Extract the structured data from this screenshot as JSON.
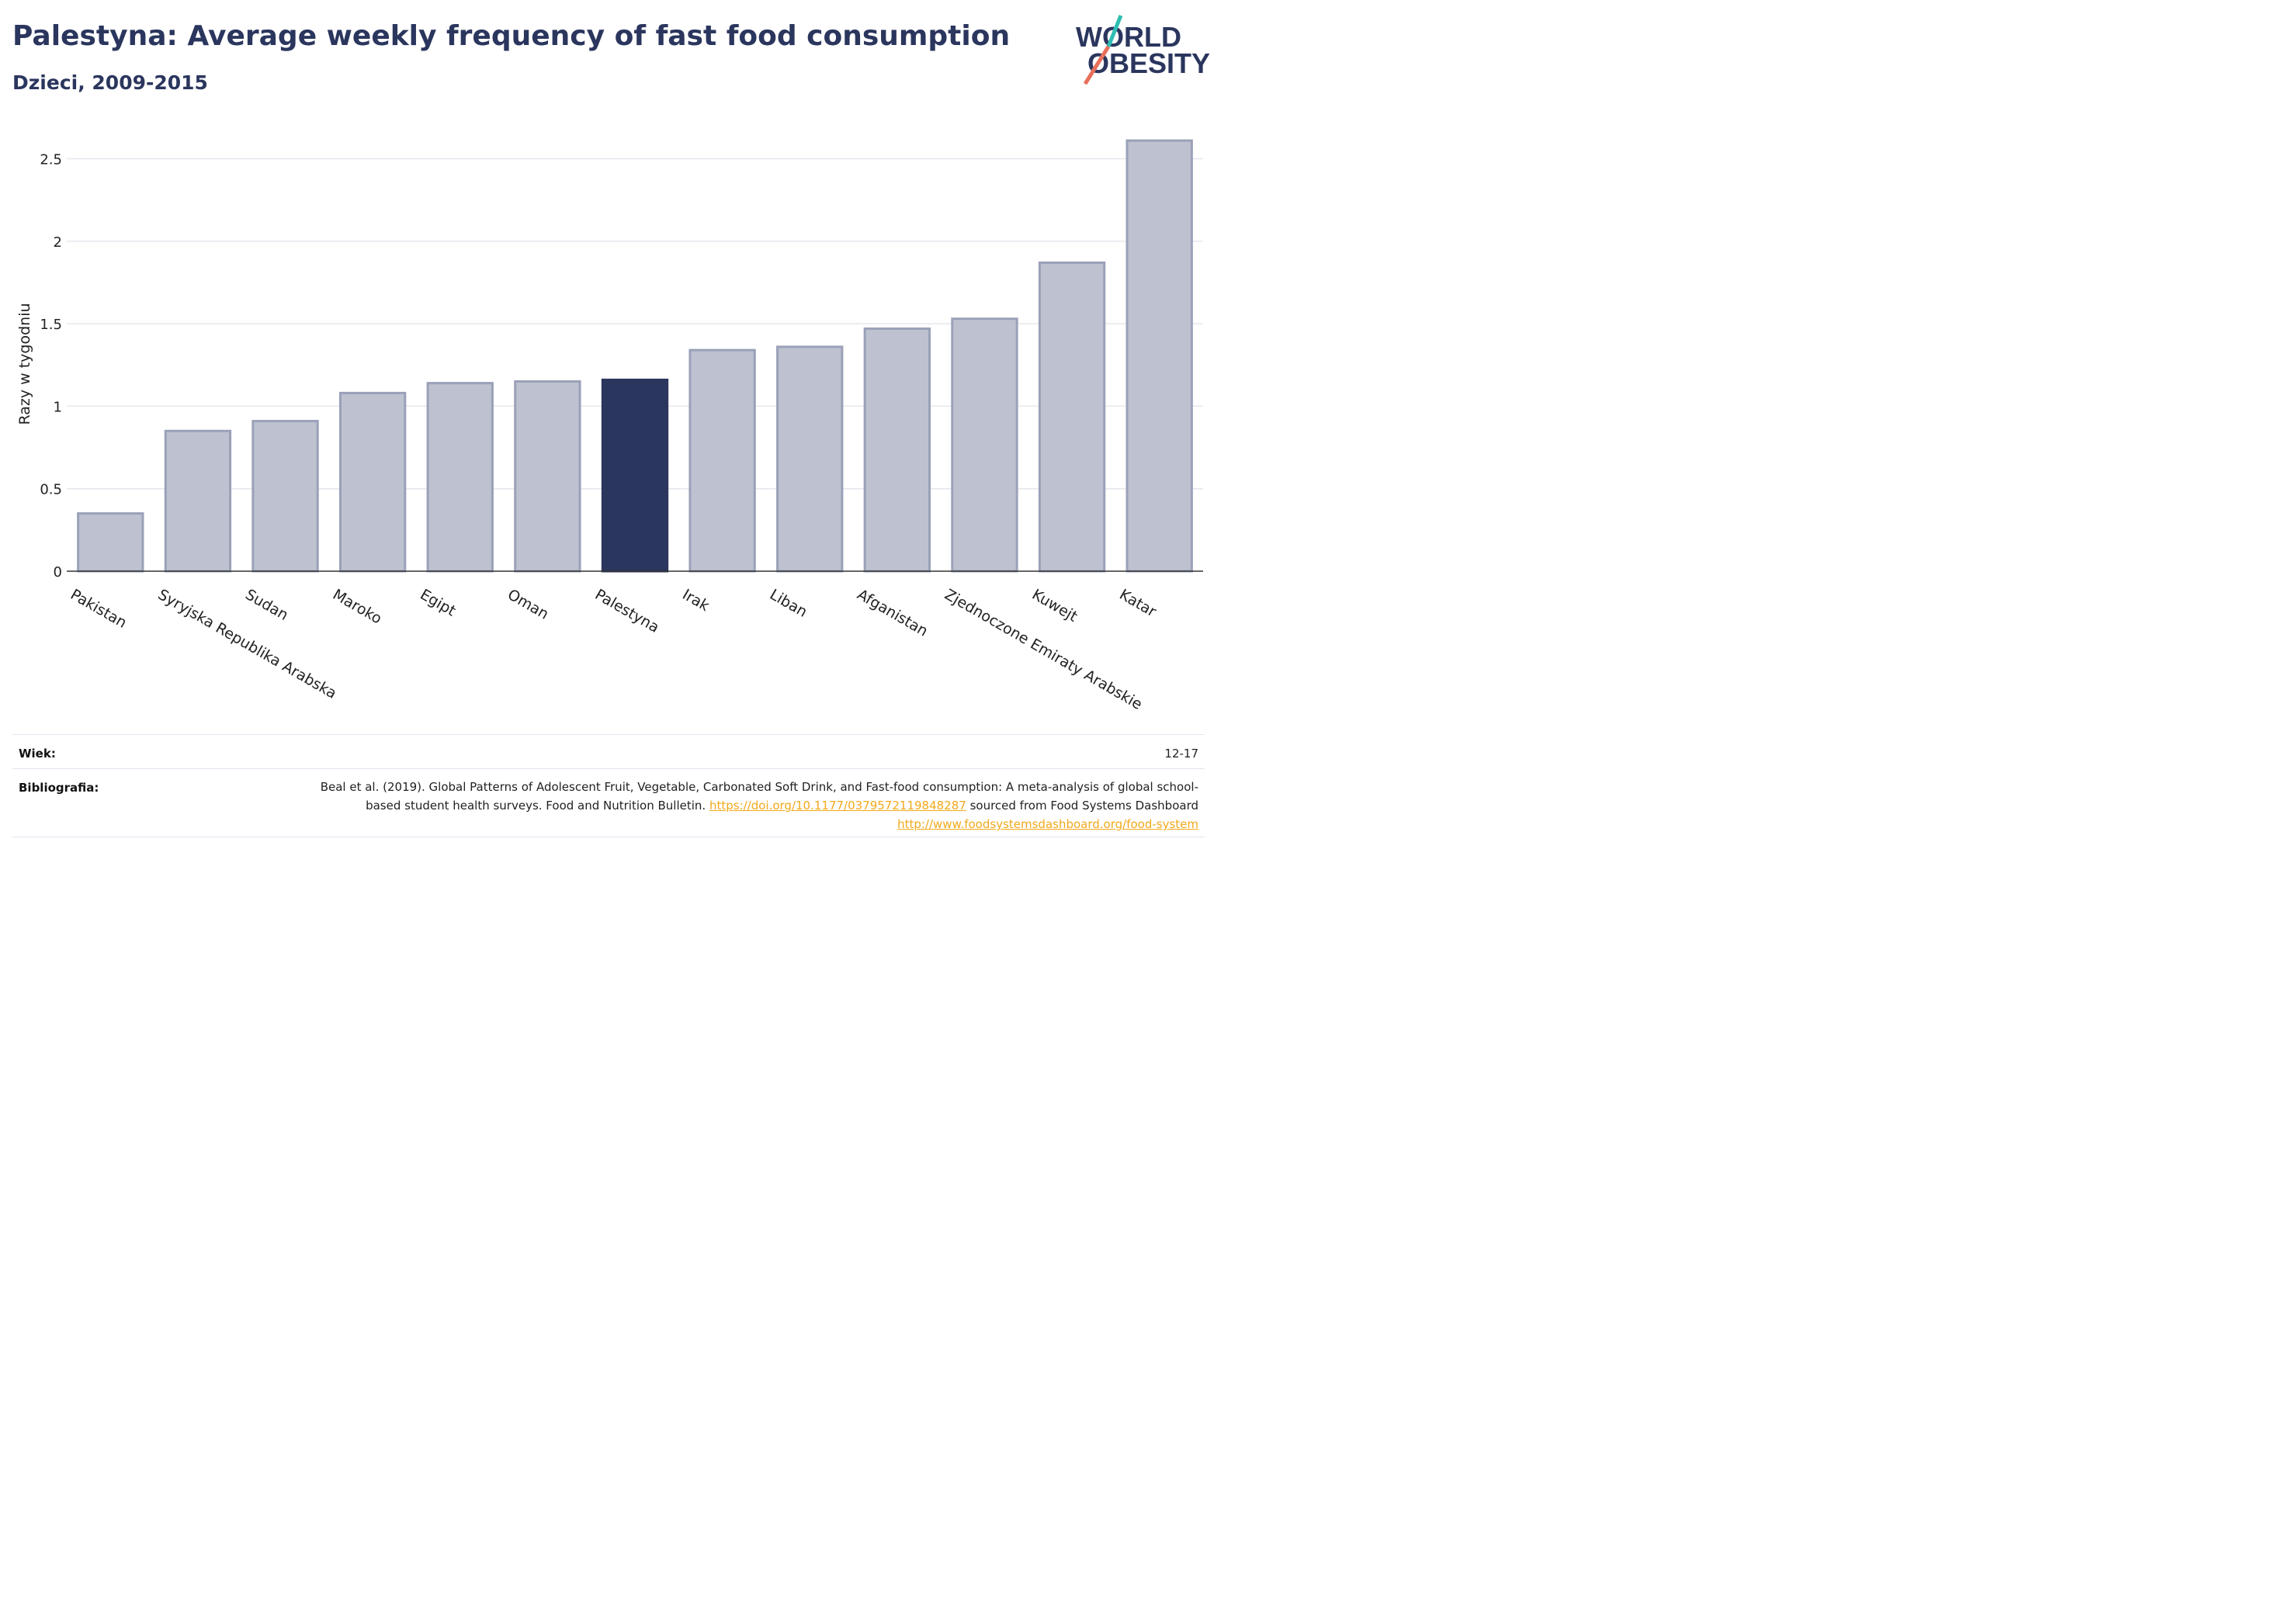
{
  "header": {
    "title": "Palestyna: Average weekly frequency of fast food consumption",
    "subtitle": "Dzieci, 2009-2015"
  },
  "logo": {
    "line1": "WORLD",
    "line2": "OBESITY"
  },
  "colors": {
    "bar": "#bec2d0",
    "bar_edge": "#9aa1b8",
    "highlight": "#2b365e",
    "grid": "#e6e6ee",
    "link": "#f2a91b"
  },
  "chart_data": {
    "type": "bar",
    "ylabel": "Razy w tygodniu",
    "ylim": [
      0,
      2.7
    ],
    "yticks": [
      0,
      0.5,
      1,
      1.5,
      2,
      2.5
    ],
    "ytick_labels": [
      "0",
      "0.5",
      "1",
      "1.5",
      "2",
      "2.5"
    ],
    "grid": true,
    "highlight": "Palestyna",
    "categories": [
      "Pakistan",
      "Syryjska Republika Arabska",
      "Sudan",
      "Maroko",
      "Egipt",
      "Oman",
      "Palestyna",
      "Irak",
      "Liban",
      "Afganistan",
      "Zjednoczone Emiraty Arabskie",
      "Kuwejt",
      "Katar"
    ],
    "values": [
      0.35,
      0.85,
      0.91,
      1.08,
      1.14,
      1.15,
      1.16,
      1.34,
      1.36,
      1.47,
      1.53,
      1.87,
      2.61
    ]
  },
  "footer": {
    "age_label": "Wiek:",
    "age_value": "12-17",
    "bib_label": "Bibliografia:",
    "bib_text1": "Beal et al. (2019). Global Patterns of Adolescent Fruit, Vegetable, Carbonated Soft Drink, and Fast-food consumption: A meta-analysis of global school-based student health surveys. Food and Nutrition Bulletin.",
    "bib_link1": "https://doi.org/10.1177/0379572119848287",
    "bib_text2": "sourced from Food Systems Dashboard",
    "bib_link2": "http://www.foodsystemsdashboard.org/food-system"
  }
}
